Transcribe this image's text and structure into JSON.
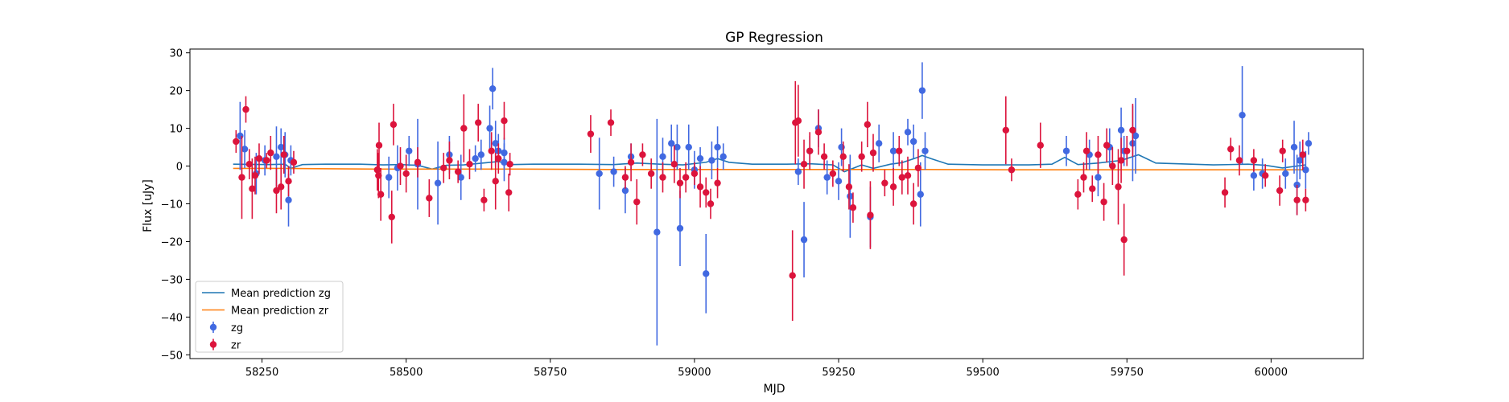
{
  "chart_data": {
    "type": "scatter",
    "title": "GP Regression",
    "xlabel": "MJD",
    "ylabel": "Flux [uJy]",
    "xlim": [
      58125,
      60160
    ],
    "ylim": [
      -51,
      31
    ],
    "xticks": [
      58250,
      58500,
      58750,
      59000,
      59250,
      59500,
      59750,
      60000
    ],
    "yticks": [
      30,
      20,
      10,
      0,
      -10,
      -20,
      -30,
      -40,
      -50
    ],
    "legend_position": "lower-left",
    "series": [
      {
        "name": "Mean prediction zg",
        "kind": "line",
        "color": "#1f77b4",
        "x": [
          58200,
          58260,
          58290,
          58300,
          58320,
          58360,
          58420,
          58460,
          58490,
          58520,
          58545,
          58570,
          58600,
          58640,
          58660,
          58680,
          58720,
          58800,
          58860,
          58900,
          58940,
          58980,
          59020,
          59040,
          59060,
          59100,
          59160,
          59200,
          59240,
          59260,
          59290,
          59310,
          59340,
          59360,
          59385,
          59395,
          59410,
          59440,
          59500,
          59580,
          59620,
          59642,
          59665,
          59700,
          59740,
          59770,
          59800,
          59900,
          59960,
          59990,
          60020,
          60060
        ],
        "y": [
          0.5,
          0.4,
          0.5,
          -0.6,
          0.4,
          0.5,
          0.5,
          0.3,
          0.4,
          0.2,
          -0.8,
          0.2,
          0.3,
          0.9,
          1.2,
          0.4,
          0.5,
          0.5,
          0.4,
          0.8,
          0.5,
          0.3,
          1.0,
          2.0,
          1.0,
          0.5,
          0.5,
          0.6,
          0.3,
          -1.5,
          0.3,
          -0.6,
          0.5,
          0.9,
          2.2,
          2.8,
          2.0,
          0.5,
          0.3,
          0.3,
          0.5,
          2.3,
          0.4,
          0.8,
          1.5,
          3.0,
          0.8,
          0.3,
          0.5,
          0.2,
          -0.5,
          0.3
        ]
      },
      {
        "name": "Mean prediction zr",
        "kind": "line",
        "color": "#ff7f0e",
        "x": [
          58200,
          58280,
          58350,
          58450,
          58560,
          58700,
          58850,
          59000,
          59150,
          59250,
          59400,
          59550,
          59700,
          59800,
          59950,
          60060
        ],
        "y": [
          -0.6,
          -0.6,
          -0.7,
          -0.8,
          -0.8,
          -0.8,
          -0.9,
          -0.9,
          -0.9,
          -0.9,
          -0.9,
          -1.0,
          -1.0,
          -1.0,
          -1.0,
          -1.0
        ]
      },
      {
        "name": "zg",
        "kind": "errorbar",
        "color": "#4169e1",
        "x": [
          58212,
          58220,
          58240,
          58255,
          58275,
          58283,
          58290,
          58296,
          58300,
          58470,
          58485,
          58505,
          58520,
          58555,
          58575,
          58595,
          58620,
          58630,
          58645,
          58650,
          58655,
          58660,
          58670,
          58670,
          58835,
          58860,
          58880,
          58890,
          58935,
          58945,
          58960,
          58970,
          58975,
          58990,
          59000,
          59010,
          59020,
          59030,
          59040,
          59050,
          59180,
          59190,
          59200,
          59215,
          59230,
          59250,
          59255,
          59270,
          59305,
          59320,
          59345,
          59370,
          59380,
          59392,
          59395,
          59400,
          59645,
          59685,
          59700,
          59720,
          59740,
          59745,
          59760,
          59765,
          59950,
          59970,
          59985,
          60025,
          60040,
          60045,
          60050,
          60060,
          60065
        ],
        "y": [
          8.0,
          4.5,
          -2.0,
          1.5,
          2.5,
          5.0,
          3.0,
          -9.0,
          1.5,
          -3.0,
          -0.5,
          4.0,
          0.5,
          -4.5,
          3.0,
          -3.0,
          2.0,
          3.0,
          10.0,
          20.5,
          6.0,
          4.0,
          3.5,
          1.0,
          -2.0,
          -1.5,
          -6.5,
          2.5,
          -17.5,
          2.5,
          6.0,
          5.0,
          -16.5,
          5.0,
          -1.0,
          2.0,
          -28.5,
          1.5,
          5.0,
          2.5,
          -1.5,
          -19.5,
          4.0,
          10.0,
          -3.0,
          -4.0,
          5.0,
          -8.0,
          -13.5,
          6.0,
          4.0,
          9.0,
          6.5,
          -7.5,
          20.0,
          4.0,
          4.0,
          3.0,
          -3.0,
          5.0,
          9.5,
          4.0,
          6.0,
          8.0,
          13.5,
          -2.5,
          -2.0,
          -2.0,
          5.0,
          -5.0,
          1.5,
          -1.0,
          6.0
        ],
        "err": [
          9.0,
          5.0,
          5.5,
          4.0,
          8.0,
          5.0,
          6.0,
          7.0,
          4.0,
          5.5,
          6.0,
          4.0,
          12.0,
          11.0,
          5.0,
          6.0,
          3.5,
          4.0,
          6.0,
          5.5,
          6.0,
          4.5,
          4.0,
          5.0,
          9.5,
          4.0,
          6.0,
          3.5,
          30.0,
          5.0,
          5.0,
          6.0,
          10.0,
          6.0,
          5.0,
          3.0,
          10.5,
          5.0,
          5.5,
          3.5,
          3.5,
          10.0,
          4.0,
          5.0,
          4.5,
          5.0,
          5.0,
          11.0,
          8.0,
          5.0,
          5.0,
          3.5,
          4.5,
          8.5,
          7.5,
          5.0,
          4.0,
          4.0,
          5.0,
          5.0,
          6.0,
          4.0,
          10.0,
          10.0,
          13.0,
          4.0,
          4.0,
          4.0,
          7.0,
          8.0,
          5.0,
          5.0,
          3.0
        ]
      },
      {
        "name": "zr",
        "kind": "errorbar",
        "color": "#dc143c",
        "x": [
          58205,
          58215,
          58222,
          58228,
          58233,
          58238,
          58245,
          58258,
          58265,
          58275,
          58283,
          58288,
          58296,
          58305,
          58450,
          58452,
          58453,
          58456,
          58475,
          58478,
          58490,
          58500,
          58520,
          58540,
          58565,
          58575,
          58590,
          58600,
          58610,
          58625,
          58635,
          58648,
          58655,
          58660,
          58670,
          58678,
          58680,
          58820,
          58855,
          58880,
          58890,
          58900,
          58910,
          58925,
          58945,
          58965,
          58975,
          58985,
          59000,
          59010,
          59020,
          59028,
          59040,
          59170,
          59175,
          59180,
          59190,
          59200,
          59215,
          59225,
          59240,
          59258,
          59268,
          59275,
          59290,
          59300,
          59305,
          59310,
          59330,
          59345,
          59355,
          59360,
          59370,
          59380,
          59388,
          59540,
          59550,
          59600,
          59665,
          59675,
          59680,
          59690,
          59700,
          59710,
          59715,
          59725,
          59735,
          59740,
          59745,
          59750,
          59760,
          59920,
          59930,
          59945,
          59970,
          59990,
          60015,
          60020,
          60045,
          60055,
          60060
        ],
        "y": [
          6.5,
          -3.0,
          15.0,
          0.5,
          -6.0,
          -2.5,
          2.0,
          1.5,
          3.5,
          -6.5,
          -5.5,
          3.0,
          -4.0,
          1.0,
          -1.0,
          -2.5,
          5.5,
          -7.5,
          -13.5,
          11.0,
          0.0,
          -2.0,
          1.0,
          -8.5,
          -0.5,
          1.5,
          -1.5,
          10.0,
          0.5,
          11.5,
          -9.0,
          4.0,
          -4.0,
          2.0,
          12.0,
          -7.0,
          0.5,
          8.5,
          11.5,
          -3.0,
          1.0,
          -9.5,
          3.0,
          -2.0,
          -3.0,
          0.5,
          -4.5,
          -3.0,
          -2.0,
          -5.5,
          -7.0,
          -10.0,
          -4.5,
          -29.0,
          11.5,
          12.0,
          0.5,
          4.0,
          9.0,
          2.5,
          -2.0,
          2.5,
          -5.5,
          -11.0,
          2.5,
          11.0,
          -13.0,
          3.5,
          -4.5,
          -5.5,
          4.0,
          -3.0,
          -2.5,
          -10.0,
          -0.5,
          9.5,
          -1.0,
          5.5,
          -7.5,
          -3.0,
          4.0,
          -6.0,
          3.0,
          -9.5,
          5.5,
          0.0,
          -5.5,
          1.5,
          -19.5,
          4.0,
          9.5,
          -7.0,
          4.5,
          1.5,
          1.5,
          -2.5,
          -6.5,
          4.0,
          -9.0,
          3.0,
          -9.0
        ],
        "err": [
          3.0,
          11.0,
          3.5,
          4.0,
          8.0,
          5.0,
          4.0,
          2.0,
          4.5,
          6.0,
          6.0,
          5.0,
          4.0,
          3.0,
          5.5,
          6.0,
          6.0,
          7.0,
          7.0,
          5.5,
          5.0,
          5.0,
          4.0,
          5.0,
          4.0,
          5.0,
          3.0,
          9.0,
          4.0,
          5.0,
          3.0,
          5.0,
          7.5,
          4.0,
          5.0,
          5.0,
          3.0,
          5.0,
          3.5,
          3.0,
          5.0,
          6.0,
          3.0,
          4.0,
          4.0,
          5.0,
          4.0,
          4.0,
          3.0,
          5.5,
          4.0,
          4.0,
          4.0,
          12.0,
          11.0,
          9.5,
          6.5,
          5.0,
          6.0,
          3.5,
          3.5,
          4.0,
          6.0,
          4.0,
          4.0,
          6.0,
          9.0,
          5.0,
          3.5,
          5.0,
          4.0,
          4.5,
          5.0,
          5.5,
          5.0,
          9.0,
          3.0,
          6.0,
          4.0,
          4.0,
          5.0,
          3.5,
          5.0,
          5.0,
          4.5,
          5.0,
          10.0,
          6.0,
          9.5,
          4.0,
          7.0,
          4.0,
          3.0,
          4.0,
          3.0,
          3.0,
          4.0,
          3.0,
          4.0,
          4.0,
          3.0
        ]
      }
    ]
  }
}
